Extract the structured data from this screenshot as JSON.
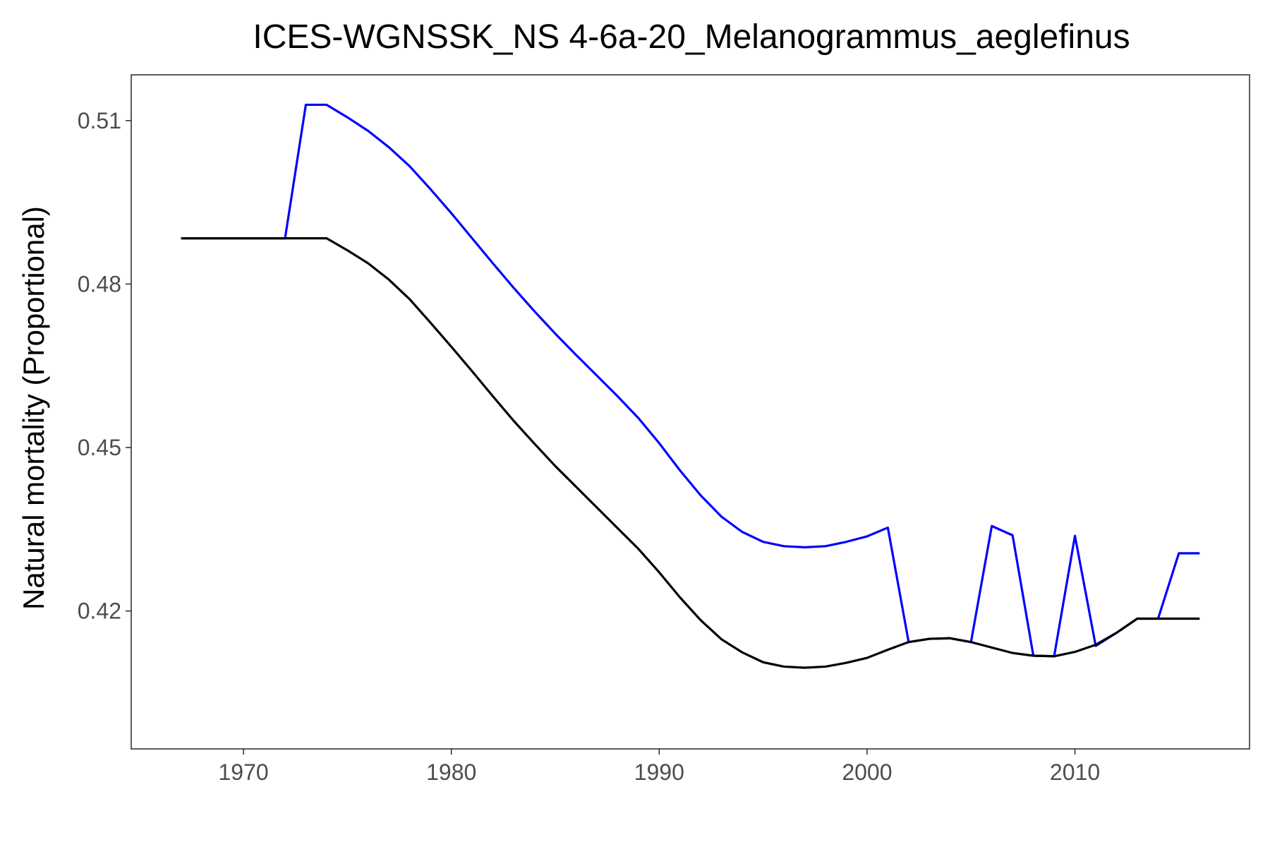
{
  "chart_data": {
    "type": "line",
    "title": "ICES-WGNSSK_NS  4-6a-20_Melanogrammus_aeglefinus",
    "xlabel": "",
    "ylabel": "Natural mortality (Proportional)",
    "xlim": [
      1964.6,
      2018.4
    ],
    "ylim": [
      0.3947,
      0.5184
    ],
    "x_ticks": [
      1970,
      1980,
      1990,
      2000,
      2010
    ],
    "y_ticks": [
      0.42,
      0.45,
      0.48,
      0.51
    ],
    "y_tick_labels": [
      "0.42",
      "0.45",
      "0.48",
      "0.51"
    ],
    "grid": false,
    "legend": "none",
    "series": [
      {
        "color": "#0000ff",
        "x": [
          1967,
          1968,
          1969,
          1970,
          1971,
          1972,
          1973,
          1974,
          1975,
          1976,
          1977,
          1978,
          1979,
          1980,
          1981,
          1982,
          1983,
          1984,
          1985,
          1986,
          1987,
          1988,
          1989,
          1990,
          1991,
          1992,
          1993,
          1994,
          1995,
          1996,
          1997,
          1998,
          1999,
          2000,
          2001,
          2002,
          2003,
          2004,
          2005,
          2006,
          2007,
          2008,
          2009,
          2010,
          2011,
          2012,
          2013,
          2014,
          2015,
          2016
        ],
        "y": [
          0.4884,
          0.4884,
          0.4884,
          0.4884,
          0.4884,
          0.4884,
          0.5129,
          0.5129,
          0.5106,
          0.5081,
          0.5051,
          0.5016,
          0.4974,
          0.493,
          0.4884,
          0.4838,
          0.4793,
          0.475,
          0.4709,
          0.467,
          0.4632,
          0.4594,
          0.4554,
          0.4508,
          0.4458,
          0.4412,
          0.4373,
          0.4345,
          0.4327,
          0.4319,
          0.4317,
          0.4319,
          0.4327,
          0.4337,
          0.4353,
          0.4143,
          0.4149,
          0.415,
          0.4143,
          0.4356,
          0.4339,
          0.4118,
          0.4117,
          0.4338,
          0.4136,
          0.416,
          0.4186,
          0.4186,
          0.4306,
          0.4306
        ]
      },
      {
        "color": "#000000",
        "x": [
          1967,
          1968,
          1969,
          1970,
          1971,
          1972,
          1973,
          1974,
          1975,
          1976,
          1977,
          1978,
          1979,
          1980,
          1981,
          1982,
          1983,
          1984,
          1985,
          1986,
          1987,
          1988,
          1989,
          1990,
          1991,
          1992,
          1993,
          1994,
          1995,
          1996,
          1997,
          1998,
          1999,
          2000,
          2001,
          2002,
          2003,
          2004,
          2005,
          2006,
          2007,
          2008,
          2009,
          2010,
          2011,
          2012,
          2013,
          2014,
          2015,
          2016
        ],
        "y": [
          0.4884,
          0.4884,
          0.4884,
          0.4884,
          0.4884,
          0.4884,
          0.4884,
          0.4884,
          0.4862,
          0.4838,
          0.4808,
          0.4772,
          0.4729,
          0.4685,
          0.464,
          0.4594,
          0.4549,
          0.4507,
          0.4466,
          0.4428,
          0.439,
          0.4352,
          0.4314,
          0.4271,
          0.4225,
          0.4183,
          0.4148,
          0.4124,
          0.4106,
          0.4098,
          0.4096,
          0.4098,
          0.4105,
          0.4114,
          0.4129,
          0.4143,
          0.4149,
          0.415,
          0.4143,
          0.4133,
          0.4123,
          0.4118,
          0.4117,
          0.4125,
          0.4138,
          0.416,
          0.4186,
          0.4186,
          0.4186,
          0.4186
        ]
      }
    ]
  }
}
